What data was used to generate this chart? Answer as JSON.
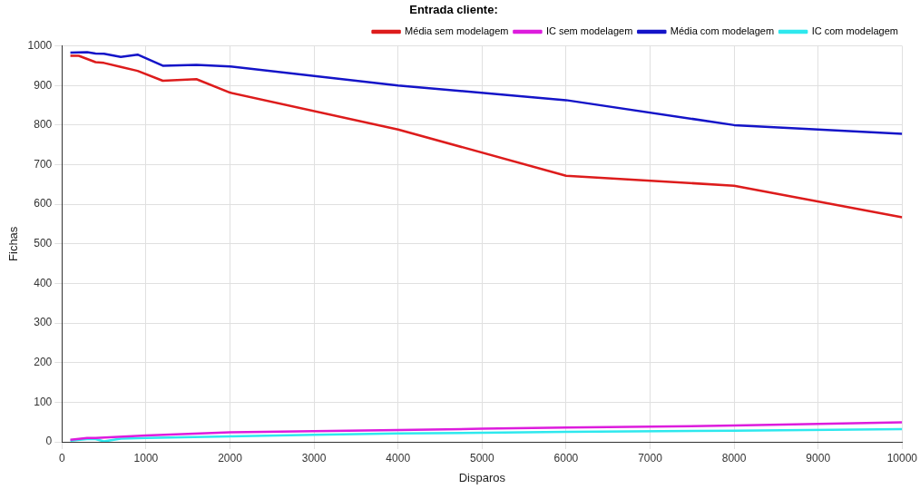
{
  "chart_data": {
    "type": "line",
    "title": "Entrada cliente:",
    "xlabel": "Disparos",
    "ylabel": "Fichas",
    "xlim": [
      0,
      10000
    ],
    "xticks": [
      0,
      1000,
      2000,
      3000,
      4000,
      5000,
      6000,
      7000,
      8000,
      9000,
      10000
    ],
    "ylim": [
      0,
      1000
    ],
    "yticks": [
      0,
      100,
      200,
      300,
      400,
      500,
      600,
      700,
      800,
      900,
      1000
    ],
    "grid": true,
    "legend": "top right",
    "marker": "none",
    "line_style": "solid",
    "series": [
      {
        "name": "Média sem modelagem",
        "color": "#dd1c1c",
        "x": [
          100,
          200,
          400,
          500,
          700,
          900,
          1200,
          1600,
          2000,
          4000,
          6000,
          8000,
          10000
        ],
        "values": [
          975,
          975,
          959,
          957,
          947,
          937,
          912,
          916,
          882,
          789,
          672,
          647,
          567
        ]
      },
      {
        "name": "IC sem modelagem",
        "color": "#dd1cdd",
        "x": [
          100,
          300,
          400,
          1000,
          2000,
          3000,
          4000,
          5000,
          6000,
          8000,
          9000,
          10000
        ],
        "values": [
          5,
          10,
          10,
          16,
          24,
          27,
          30,
          33,
          36,
          41,
          45,
          49
        ]
      },
      {
        "name": "Média com modelagem",
        "color": "#1414c8",
        "x": [
          100,
          300,
          400,
          500,
          700,
          900,
          1200,
          1600,
          2000,
          4000,
          6000,
          8000,
          10000
        ],
        "values": [
          983,
          984,
          981,
          980,
          972,
          978,
          950,
          952,
          948,
          900,
          863,
          800,
          778
        ]
      },
      {
        "name": "IC com modelagem",
        "color": "#2ee8ee",
        "x": [
          100,
          300,
          400,
          500,
          700,
          1000,
          2000,
          3000,
          4000,
          5000,
          6000,
          8000,
          10000
        ],
        "values": [
          3,
          7,
          7,
          1,
          8,
          10,
          14,
          18,
          21,
          23,
          25,
          28,
          32
        ]
      }
    ]
  }
}
